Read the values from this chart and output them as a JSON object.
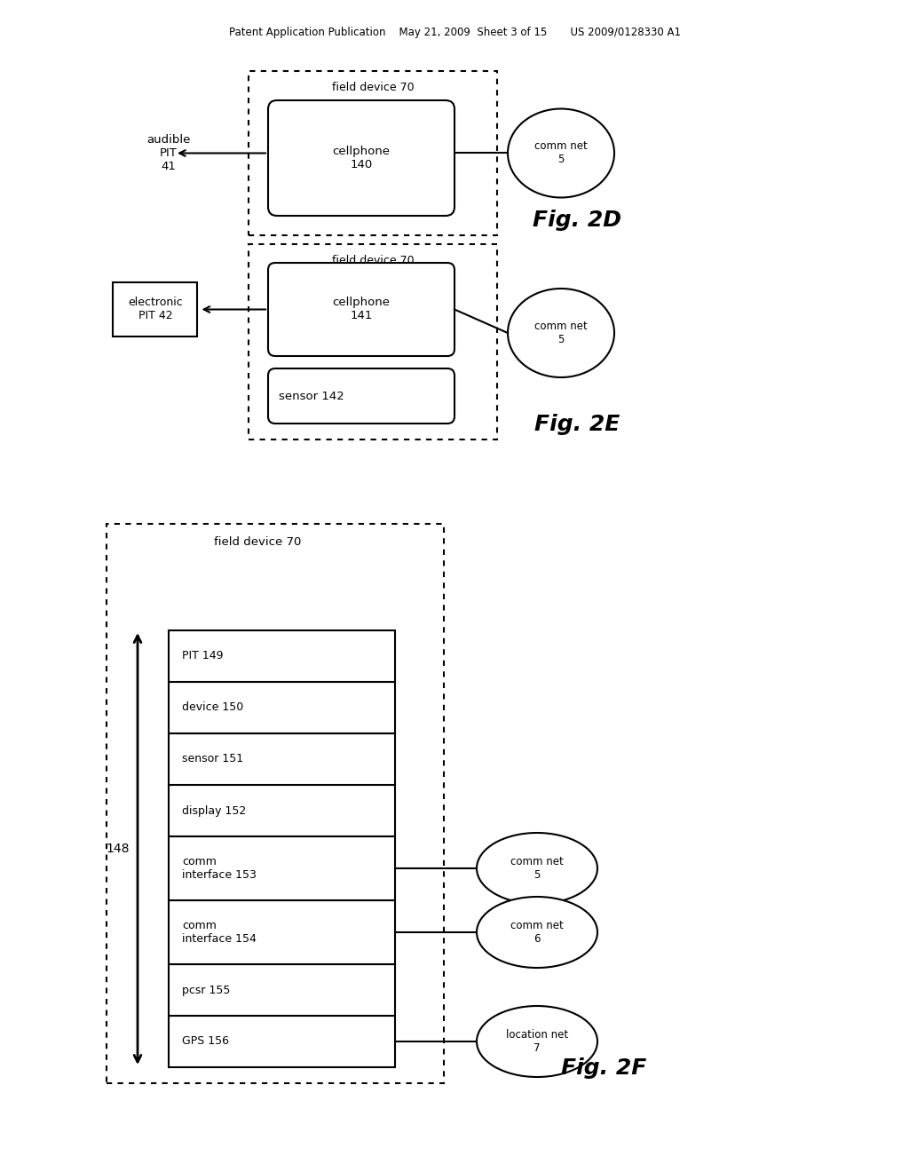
{
  "bg_color": "#ffffff",
  "header_text": "Patent Application Publication    May 21, 2009  Sheet 3 of 15       US 2009/0128330 A1",
  "fig2d_label": "Fig. 2D",
  "fig2e_label": "Fig. 2E",
  "fig2f_label": "Fig. 2F",
  "fig2d": {
    "outer_box_label": "field device 70",
    "inner_box_label": "cellphone\n140",
    "oval_label": "comm net\n5",
    "left_label": "audible\nPIT\n41"
  },
  "fig2e": {
    "outer_box_label": "field device 70",
    "inner_box1_label": "cellphone\n141",
    "inner_box2_label": "sensor 142",
    "oval_label": "comm net\n5",
    "left_label": "electronic\nPIT 42"
  },
  "fig2f": {
    "outer_box_label": "field device 70",
    "brace_label": "148",
    "boxes": [
      "PIT 149",
      "device 150",
      "sensor 151",
      "display 152",
      "comm\ninterface 153",
      "comm\ninterface 154",
      "pcsr 155",
      "GPS 156"
    ],
    "ovals": [
      "comm net\n5",
      "comm net\n6",
      "location net\n7"
    ],
    "oval_connections": [
      4,
      5,
      7
    ]
  }
}
